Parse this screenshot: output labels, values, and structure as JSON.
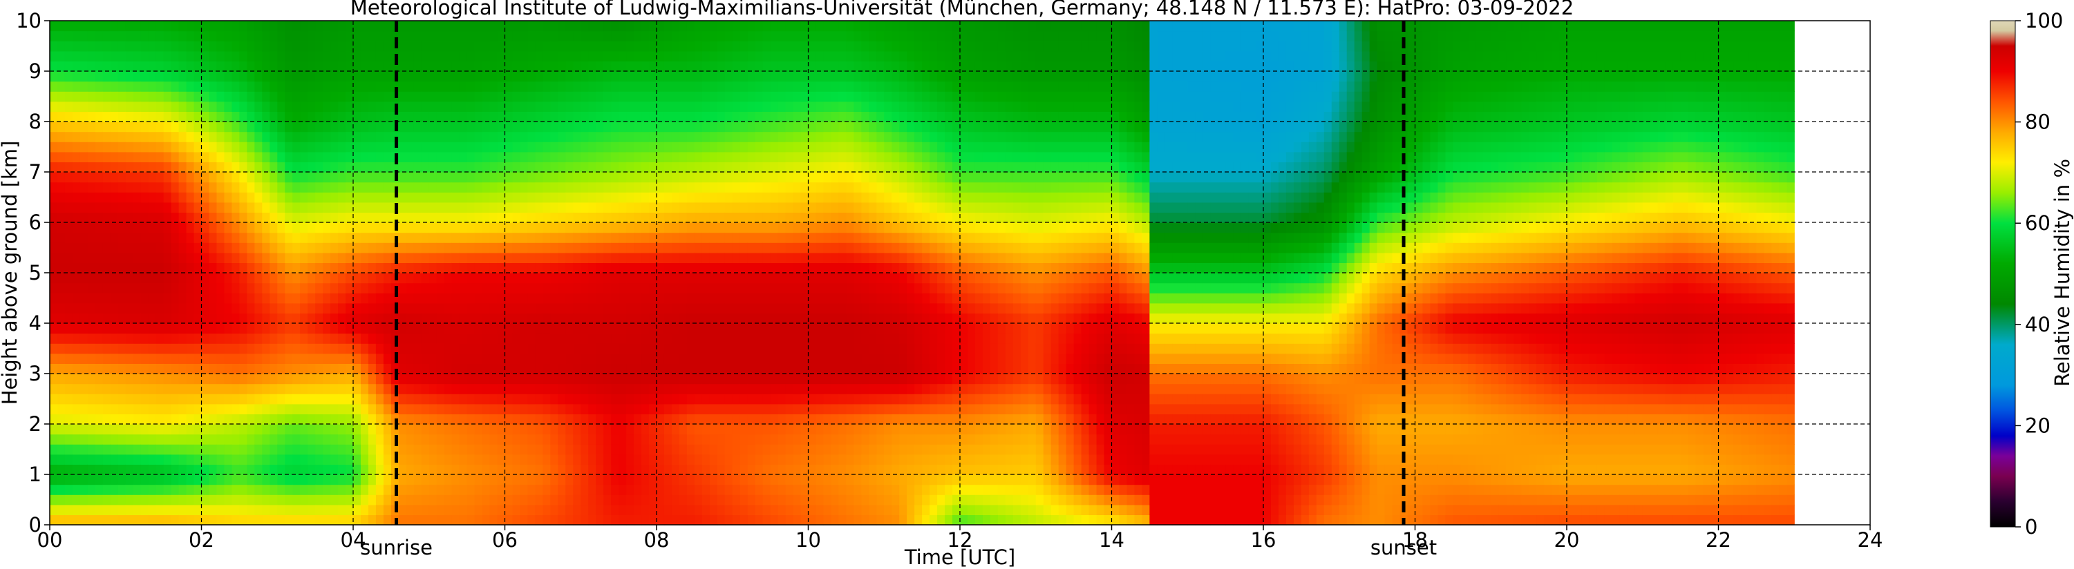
{
  "chart_data": {
    "type": "heatmap",
    "title": "Meteorological Institute of Ludwig-Maximilians-Universität (München, Germany; 48.148 N / 11.573 E):    HatPro: 03-09-2022",
    "xlabel": "Time [UTC]",
    "ylabel": "Height above ground [km]",
    "xlim": [
      0,
      24
    ],
    "ylim": [
      0,
      10
    ],
    "data_end_time": 23,
    "x_tick_labels": [
      "00",
      "02",
      "04",
      "06",
      "08",
      "10",
      "12",
      "14",
      "16",
      "18",
      "20",
      "22",
      "24"
    ],
    "y_tick_labels": [
      "0",
      "1",
      "2",
      "3",
      "4",
      "5",
      "6",
      "7",
      "8",
      "9",
      "10"
    ],
    "grid": true,
    "vertical_markers": [
      {
        "label": "sunrise",
        "x": 4.57
      },
      {
        "label": "sunset",
        "x": 17.85
      }
    ],
    "colorbar": {
      "label": "Relative Humidity in %",
      "tick_labels": [
        "0",
        "20",
        "40",
        "60",
        "80",
        "100"
      ],
      "range": [
        0,
        100
      ],
      "stops": [
        {
          "v": 0,
          "c": "#000000"
        },
        {
          "v": 5,
          "c": "#2a0030"
        },
        {
          "v": 10,
          "c": "#7a0050"
        },
        {
          "v": 14,
          "c": "#7a0099"
        },
        {
          "v": 18,
          "c": "#0000c8"
        },
        {
          "v": 23,
          "c": "#0055e0"
        },
        {
          "v": 28,
          "c": "#0099dd"
        },
        {
          "v": 36,
          "c": "#00aacc"
        },
        {
          "v": 44,
          "c": "#008800"
        },
        {
          "v": 52,
          "c": "#00aa00"
        },
        {
          "v": 60,
          "c": "#00e040"
        },
        {
          "v": 66,
          "c": "#99ee00"
        },
        {
          "v": 72,
          "c": "#ffee00"
        },
        {
          "v": 78,
          "c": "#ffaa00"
        },
        {
          "v": 84,
          "c": "#ff5500"
        },
        {
          "v": 90,
          "c": "#ee0000"
        },
        {
          "v": 95,
          "c": "#cc0000"
        },
        {
          "v": 98,
          "c": "#d4c9a0"
        },
        {
          "v": 100,
          "c": "#e0d8b8"
        }
      ]
    },
    "humidity_profiles": [
      {
        "t": 0.0,
        "rh": [
          78,
          52,
          70,
          78,
          92,
          95,
          94,
          88,
          75,
          60,
          52
        ]
      },
      {
        "t": 1.5,
        "rh": [
          78,
          55,
          72,
          80,
          93,
          95,
          93,
          86,
          72,
          58,
          52
        ]
      },
      {
        "t": 2.5,
        "rh": [
          75,
          62,
          68,
          82,
          90,
          88,
          80,
          72,
          62,
          54,
          50
        ]
      },
      {
        "t": 3.2,
        "rh": [
          75,
          58,
          64,
          80,
          86,
          80,
          70,
          60,
          52,
          48,
          46
        ]
      },
      {
        "t": 4.0,
        "rh": [
          75,
          60,
          66,
          78,
          92,
          85,
          72,
          62,
          55,
          50,
          48
        ]
      },
      {
        "t": 4.6,
        "rh": [
          82,
          78,
          80,
          92,
          94,
          88,
          72,
          62,
          56,
          50,
          48
        ]
      },
      {
        "t": 5.5,
        "rh": [
          82,
          80,
          82,
          94,
          93,
          90,
          72,
          62,
          56,
          50,
          48
        ]
      },
      {
        "t": 6.5,
        "rh": [
          85,
          82,
          84,
          94,
          94,
          90,
          74,
          64,
          58,
          52,
          48
        ]
      },
      {
        "t": 7.5,
        "rh": [
          88,
          90,
          90,
          95,
          94,
          92,
          76,
          66,
          60,
          54,
          46
        ]
      },
      {
        "t": 8.5,
        "rh": [
          88,
          86,
          84,
          95,
          95,
          92,
          78,
          68,
          60,
          54,
          50
        ]
      },
      {
        "t": 9.5,
        "rh": [
          85,
          82,
          84,
          95,
          95,
          92,
          78,
          70,
          62,
          56,
          52
        ]
      },
      {
        "t": 10.5,
        "rh": [
          82,
          80,
          82,
          95,
          95,
          92,
          80,
          72,
          64,
          56,
          52
        ]
      },
      {
        "t": 11.2,
        "rh": [
          80,
          78,
          80,
          95,
          94,
          90,
          76,
          68,
          60,
          54,
          50
        ]
      },
      {
        "t": 12.0,
        "rh": [
          62,
          76,
          80,
          90,
          90,
          84,
          72,
          62,
          56,
          50,
          48
        ]
      },
      {
        "t": 13.0,
        "rh": [
          68,
          75,
          78,
          86,
          86,
          80,
          70,
          62,
          54,
          48,
          46
        ]
      },
      {
        "t": 14.0,
        "rh": [
          72,
          90,
          92,
          95,
          92,
          84,
          72,
          62,
          54,
          48,
          46
        ]
      },
      {
        "t": 14.45,
        "rh": [
          76,
          92,
          93,
          94,
          90,
          80,
          68,
          58,
          50,
          46,
          44
        ]
      },
      {
        "t": 14.55,
        "rh": [
          90,
          90,
          88,
          82,
          72,
          56,
          42,
          36,
          33,
          32,
          32
        ]
      },
      {
        "t": 16.0,
        "rh": [
          90,
          90,
          88,
          82,
          72,
          56,
          42,
          36,
          32,
          31,
          32
        ]
      },
      {
        "t": 16.8,
        "rh": [
          82,
          86,
          84,
          80,
          72,
          60,
          46,
          40,
          36,
          33,
          33
        ]
      },
      {
        "t": 17.5,
        "rh": [
          80,
          80,
          78,
          82,
          82,
          74,
          62,
          50,
          46,
          44,
          46
        ]
      },
      {
        "t": 18.5,
        "rh": [
          84,
          80,
          78,
          82,
          90,
          80,
          68,
          60,
          54,
          50,
          48
        ]
      },
      {
        "t": 20.0,
        "rh": [
          85,
          78,
          80,
          88,
          92,
          84,
          72,
          62,
          56,
          52,
          50
        ]
      },
      {
        "t": 21.5,
        "rh": [
          85,
          78,
          80,
          90,
          94,
          88,
          76,
          66,
          58,
          52,
          50
        ]
      },
      {
        "t": 23.0,
        "rh": [
          85,
          80,
          82,
          88,
          92,
          84,
          72,
          62,
          56,
          52,
          50
        ]
      }
    ]
  }
}
